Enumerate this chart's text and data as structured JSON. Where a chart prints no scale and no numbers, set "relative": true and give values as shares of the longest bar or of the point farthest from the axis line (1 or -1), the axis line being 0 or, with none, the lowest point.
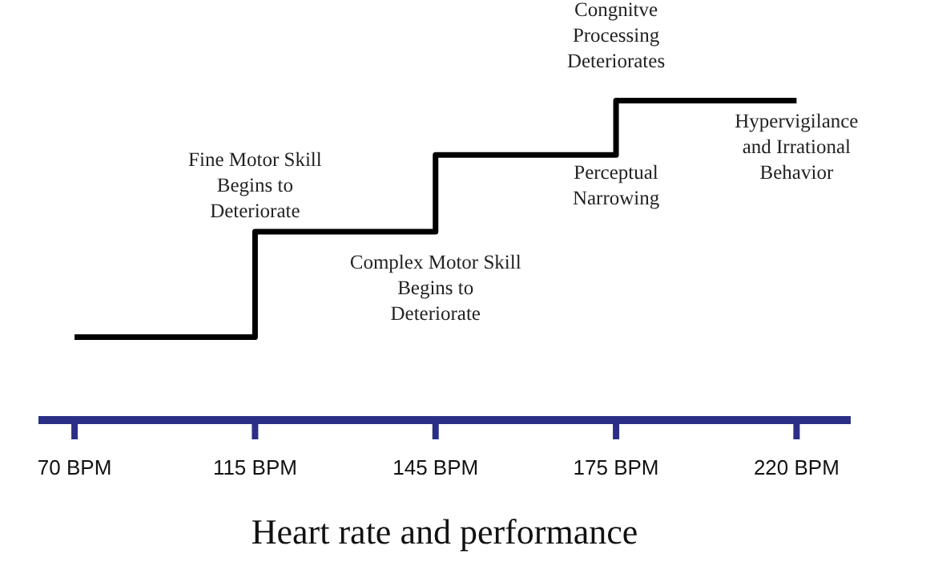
{
  "chart_data": {
    "type": "step",
    "relative": true,
    "xlabel": "Heart rate and performance",
    "categories": [
      "70 BPM",
      "115 BPM",
      "145 BPM",
      "175 BPM",
      "220 BPM"
    ],
    "series": [
      {
        "color": "#000000",
        "values": [
          0.26,
          0.59,
          0.83,
          1,
          1
        ]
      }
    ],
    "annotations": [
      "Fine Motor Skill\nBegins to\nDeteriorate",
      "Complex Motor Skill\nBegins to\nDeteriorate",
      "Congnitve\nProcessing\nDeteriorates",
      "Perceptual\nNarrowing",
      "Hypervigilance\nand Irrational\nBehavior"
    ],
    "grid": false,
    "legend": false
  }
}
